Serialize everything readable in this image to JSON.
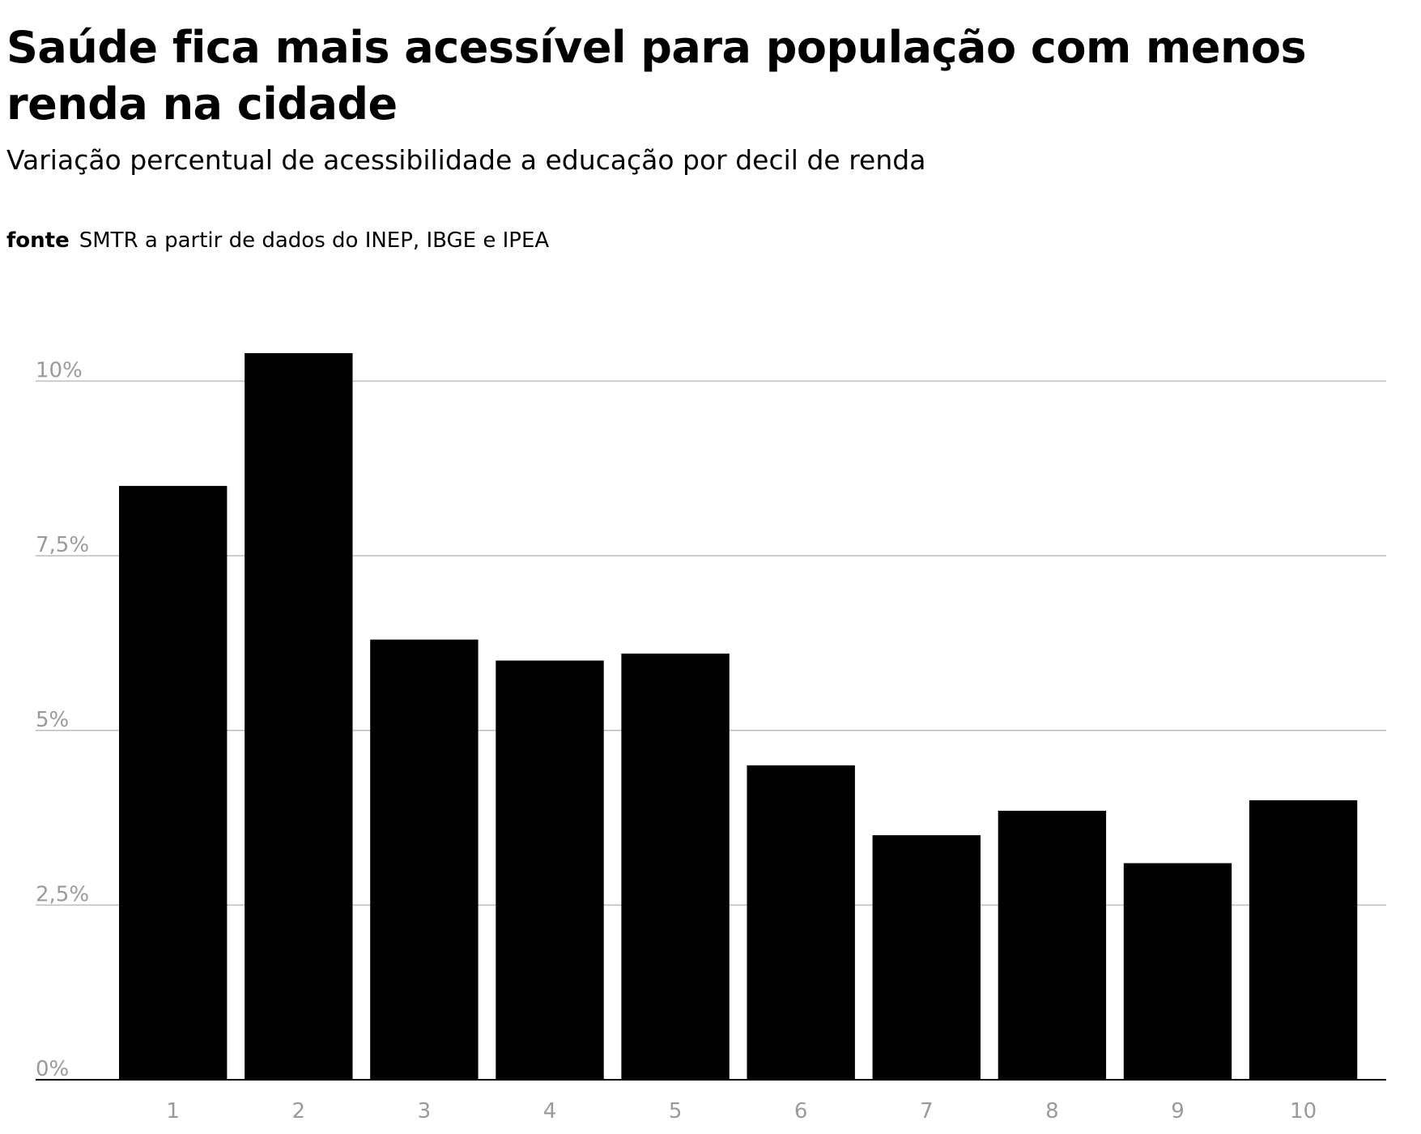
{
  "title": "Saúde fica mais acessível para população com menos renda na cidade",
  "subtitle": "Variação percentual de acessibilidade a educação por decil de renda",
  "source": {
    "label": "fonte",
    "text": "SMTR a partir de dados do INEP, IBGE e IPEA"
  },
  "chart_data": {
    "type": "bar",
    "title": "Saúde fica mais acessível para população com menos renda na cidade",
    "subtitle": "Variação percentual de acessibilidade a educação por decil de renda",
    "xlabel": "",
    "ylabel": "",
    "categories": [
      "1",
      "2",
      "3",
      "4",
      "5",
      "6",
      "7",
      "8",
      "9",
      "10"
    ],
    "values": [
      8.5,
      10.4,
      6.3,
      6.0,
      6.1,
      4.5,
      3.5,
      3.85,
      3.1,
      4.0
    ],
    "unit": "%",
    "ylim": [
      0,
      10.4
    ],
    "yticks": [
      0,
      2.5,
      5,
      7.5,
      10
    ],
    "ytick_labels": [
      "0%",
      "2,5%",
      "5%",
      "7,5%",
      "10%"
    ],
    "grid": true,
    "bar_color": "#000000",
    "grid_color": "#bdbdbd",
    "tick_label_color": "#9a9a9a"
  }
}
